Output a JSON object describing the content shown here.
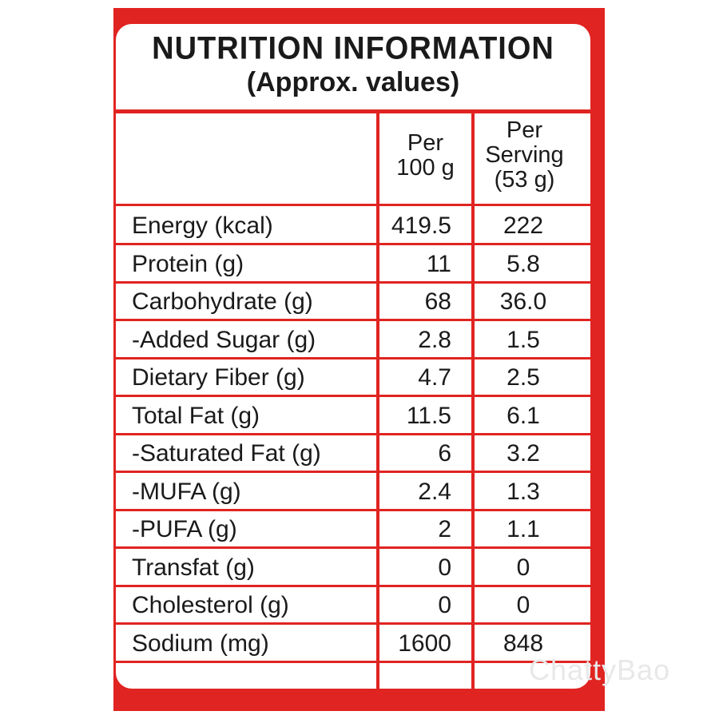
{
  "title": {
    "line1": "NUTRITION INFORMATION",
    "line2": "(Approx. values)"
  },
  "header": {
    "col1_line1": "Per",
    "col1_line2": "100 g",
    "col2_line1": "Per",
    "col2_line2": "Serving",
    "col2_line3": "(53 g)"
  },
  "rows": [
    {
      "label": "Energy (kcal)",
      "per100": "419.5",
      "perServing": "222"
    },
    {
      "label": "Protein (g)",
      "per100": "11",
      "perServing": "5.8"
    },
    {
      "label": "Carbohydrate (g)",
      "per100": "68",
      "perServing": "36.0"
    },
    {
      "label": "-Added Sugar (g)",
      "per100": "2.8",
      "perServing": "1.5"
    },
    {
      "label": "Dietary Fiber (g)",
      "per100": "4.7",
      "perServing": "2.5"
    },
    {
      "label": "Total Fat (g)",
      "per100": "11.5",
      "perServing": "6.1"
    },
    {
      "label": "-Saturated Fat (g)",
      "per100": "6",
      "perServing": "3.2"
    },
    {
      "label": "-MUFA (g)",
      "per100": "2.4",
      "perServing": "1.3"
    },
    {
      "label": "-PUFA (g)",
      "per100": "2",
      "perServing": "1.1"
    },
    {
      "label": "Transfat (g)",
      "per100": "0",
      "perServing": "0"
    },
    {
      "label": "Cholesterol (g)",
      "per100": "0",
      "perServing": "0"
    },
    {
      "label": "Sodium (mg)",
      "per100": "1600",
      "perServing": "848"
    }
  ],
  "watermark": "ChattyBao",
  "colors": {
    "accent": "#e02421",
    "text": "#1a1a1a"
  }
}
